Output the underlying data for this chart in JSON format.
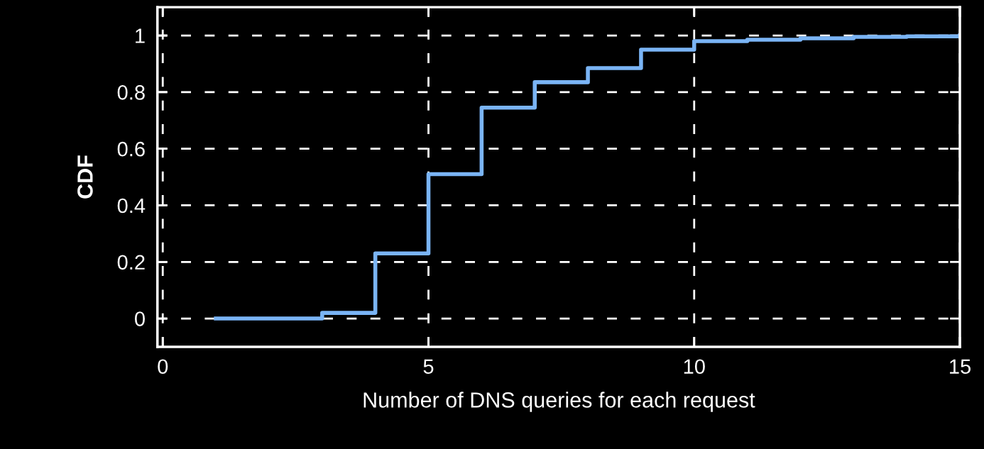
{
  "chart_data": {
    "type": "step",
    "xlabel": "Number of DNS queries for each request",
    "ylabel": "CDF",
    "x": [
      1,
      3,
      4,
      5,
      6,
      7,
      8,
      9,
      10,
      11,
      12,
      13,
      14,
      15
    ],
    "series": [
      {
        "color": "#7ab4f5",
        "values": [
          0,
          0.02,
          0.23,
          0.51,
          0.745,
          0.835,
          0.885,
          0.95,
          0.98,
          0.985,
          0.99,
          0.995,
          0.997,
          1.0
        ]
      }
    ],
    "xlim": [
      -0.1,
      15
    ],
    "xticks": [
      0,
      5,
      10,
      15
    ],
    "ylim": [
      -0.1,
      1.1
    ],
    "yticks": [
      0,
      0.2,
      0.4,
      0.6,
      0.8,
      1
    ],
    "grid": true,
    "line_style": "solid",
    "marker": "none",
    "legend": false
  }
}
